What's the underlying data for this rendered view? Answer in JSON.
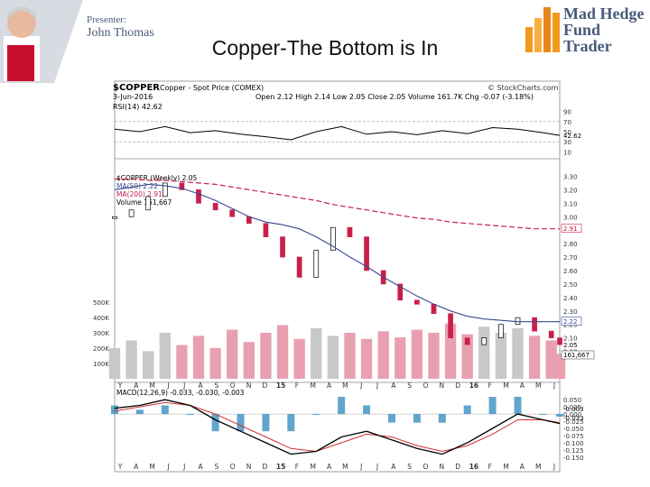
{
  "header": {
    "presenter_label": "Presenter:",
    "presenter_name": "John Thomas",
    "slide_title": "Copper-The Bottom is In",
    "logo_line1": "Mad Hedge",
    "logo_line2": "Fund Trader"
  },
  "chart_data": {
    "type": "line",
    "symbol": "$COPPER",
    "description": "Copper - Spot Price (COMEX)",
    "date": "3-Jun-2016",
    "ohlc_line": "Open 2.12 High 2.14 Low 2.05 Close 2.05 Volume 161.7K Chg -0.07 (-3.18%)",
    "source": "© StockCharts.com",
    "colors": {
      "up": "#a8a8a8",
      "down": "#c8204a",
      "ma50": "#3a4a90",
      "ma200": "#c8204a",
      "macd_hist": "#3a8fc0",
      "signal": "#d03030"
    },
    "rsi_panel": {
      "label": "RSI(14) 42.62",
      "ticks": [
        "90",
        "70",
        "50",
        "30",
        "10"
      ],
      "last_tag": "42.62",
      "x": [
        0,
        6,
        12,
        18,
        24,
        30,
        36,
        42,
        48,
        54,
        60,
        66,
        72,
        78,
        84,
        90,
        96,
        102,
        106
      ],
      "values": [
        55,
        50,
        60,
        48,
        52,
        45,
        40,
        34,
        50,
        60,
        45,
        50,
        44,
        52,
        46,
        58,
        55,
        48,
        42.6
      ],
      "ylim": [
        0,
        100
      ]
    },
    "price_panel": {
      "legend": [
        "$COPPER (Weekly) 2.05",
        "MA(50) 2.22",
        "MA(200) 2.91",
        "Volume 161,667"
      ],
      "ticks": [
        "3.30",
        "3.20",
        "3.10",
        "3.00",
        "2.90",
        "2.80",
        "2.70",
        "2.60",
        "2.50",
        "2.40",
        "2.30",
        "2.20",
        "2.10",
        "2.00"
      ],
      "ylim": [
        1.93,
        3.35
      ],
      "ma200_tag": "2.91",
      "ma50_tag": "2.22",
      "close_tag": "2.05",
      "volume_tag": "161,667",
      "volume_ticks": [
        "500K",
        "400K",
        "300K",
        "200K",
        "100K"
      ],
      "volume_ylim": [
        0,
        500000
      ],
      "x": [
        0,
        4,
        8,
        12,
        16,
        20,
        24,
        28,
        32,
        36,
        40,
        44,
        48,
        52,
        56,
        60,
        64,
        68,
        72,
        76,
        80,
        84,
        88,
        92,
        96,
        100,
        104,
        106
      ],
      "close": [
        3.0,
        3.05,
        3.15,
        3.25,
        3.2,
        3.1,
        3.05,
        3.0,
        2.95,
        2.85,
        2.7,
        2.55,
        2.75,
        2.92,
        2.85,
        2.6,
        2.5,
        2.38,
        2.35,
        2.28,
        2.1,
        2.05,
        2.1,
        2.2,
        2.25,
        2.15,
        2.1,
        2.05
      ],
      "ma50": [
        3.2,
        3.22,
        3.24,
        3.23,
        3.21,
        3.17,
        3.12,
        3.06,
        3.0,
        2.96,
        2.94,
        2.91,
        2.85,
        2.78,
        2.7,
        2.63,
        2.55,
        2.48,
        2.41,
        2.35,
        2.3,
        2.26,
        2.24,
        2.23,
        2.22,
        2.22,
        2.22,
        2.22
      ],
      "ma200": [
        3.28,
        3.28,
        3.27,
        3.27,
        3.26,
        3.25,
        3.24,
        3.22,
        3.2,
        3.18,
        3.16,
        3.14,
        3.12,
        3.09,
        3.07,
        3.05,
        3.03,
        3.01,
        2.99,
        2.98,
        2.96,
        2.95,
        2.94,
        2.93,
        2.92,
        2.91,
        2.91,
        2.91
      ],
      "volume": [
        200000,
        250000,
        180000,
        300000,
        220000,
        280000,
        200000,
        320000,
        240000,
        300000,
        350000,
        260000,
        330000,
        280000,
        300000,
        260000,
        310000,
        270000,
        320000,
        300000,
        360000,
        290000,
        340000,
        300000,
        330000,
        280000,
        250000,
        161667
      ]
    },
    "macd_panel": {
      "label": "MACD(12,26,9) -0.033, -0.030, -0.003",
      "ticks": [
        "0.050",
        "0.025",
        "0.000",
        "-0.025",
        "-0.050",
        "-0.075",
        "-0.100",
        "-0.125",
        "-0.150"
      ],
      "tags": [
        "-0.003",
        "-0.033"
      ],
      "ylim": [
        -0.16,
        0.06
      ],
      "x": [
        0,
        6,
        12,
        18,
        24,
        30,
        36,
        42,
        48,
        54,
        60,
        66,
        72,
        78,
        84,
        90,
        96,
        102,
        106
      ],
      "macd": [
        0.02,
        0.03,
        0.05,
        0.03,
        -0.02,
        -0.06,
        -0.1,
        -0.14,
        -0.13,
        -0.08,
        -0.06,
        -0.09,
        -0.12,
        -0.14,
        -0.1,
        -0.05,
        0.0,
        -0.02,
        -0.033
      ],
      "signal": [
        0.01,
        0.025,
        0.04,
        0.03,
        0.0,
        -0.04,
        -0.08,
        -0.12,
        -0.13,
        -0.1,
        -0.07,
        -0.08,
        -0.11,
        -0.13,
        -0.11,
        -0.07,
        -0.02,
        -0.02,
        -0.03
      ]
    },
    "month_labels": [
      "Y",
      "A",
      "M",
      "J",
      "J",
      "A",
      "S",
      "O",
      "N",
      "D",
      "15",
      "F",
      "M",
      "A",
      "M",
      "J",
      "J",
      "A",
      "S",
      "O",
      "N",
      "D",
      "16",
      "F",
      "M",
      "A",
      "M",
      "J"
    ]
  }
}
